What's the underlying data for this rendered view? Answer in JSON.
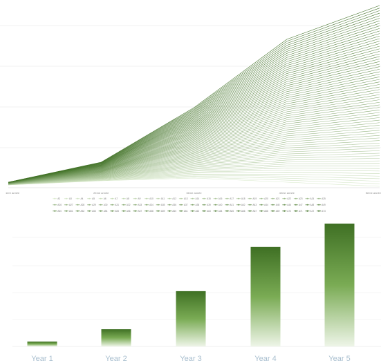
{
  "chart_data": [
    {
      "type": "line",
      "title": "",
      "xlabel": "",
      "ylabel": "",
      "categories": [
        "1ère année",
        "2ème année",
        "3ème année",
        "4ème année",
        "5ème année"
      ],
      "grid": true,
      "legend_position": "bottom",
      "series_count": 72,
      "series_color_start": "#d7e8c9",
      "series_color_end": "#3f7024",
      "legend": [
        "A2",
        "A3",
        "A4",
        "A5",
        "A6",
        "A7",
        "A8",
        "A9",
        "A10",
        "A11",
        "A12",
        "A13",
        "A14",
        "A15",
        "A16",
        "A17",
        "A18",
        "A19",
        "A20",
        "A21",
        "A22",
        "A23",
        "A24",
        "A25",
        "A26",
        "A27",
        "A28",
        "A29",
        "A30",
        "A31",
        "A32",
        "A33",
        "A34",
        "A35",
        "A36",
        "A37",
        "A38",
        "A39",
        "A40",
        "A41",
        "A42",
        "A43",
        "A44",
        "A45",
        "A46",
        "A47",
        "A48",
        "A49",
        "A50",
        "A51",
        "A52",
        "A53",
        "A54",
        "A55",
        "A56",
        "A57",
        "A58",
        "A59",
        "A60",
        "A61",
        "A62",
        "A63",
        "A64",
        "A65",
        "A66",
        "A67",
        "A68",
        "A69",
        "A70",
        "A71",
        "A72",
        "A73"
      ]
    },
    {
      "type": "bar",
      "title": "",
      "xlabel": "",
      "ylabel": "",
      "categories": [
        "Year 1",
        "Year 2",
        "Year 3",
        "Year 4",
        "Year 5"
      ],
      "values": [
        4,
        14,
        45,
        81,
        100
      ],
      "ylim": [
        0,
        100
      ],
      "grid": true,
      "bar_color_top": "#3f7024",
      "bar_color_bottom": "#eef5e8",
      "label_color": "#a9bfcf"
    }
  ]
}
